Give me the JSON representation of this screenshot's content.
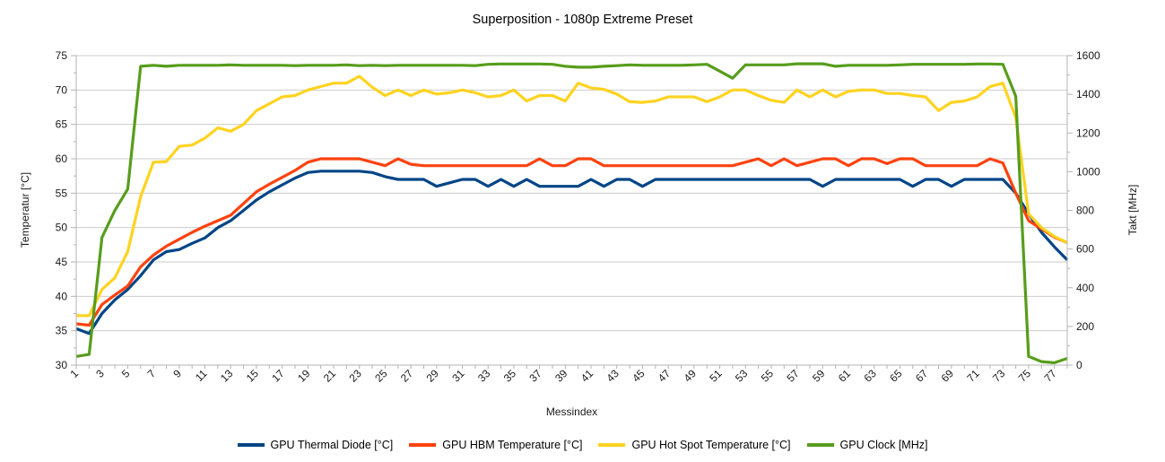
{
  "title": "Superposition - 1080p Extreme Preset",
  "colors": {
    "background": "#ffffff",
    "grid": "#cccccc",
    "axis": "#b3b3b3",
    "text": "#000000",
    "series_blue": "#004586",
    "series_red": "#ff420e",
    "series_yellow": "#ffd320",
    "series_green": "#579d1c"
  },
  "chart_data": {
    "type": "line",
    "title": "Superposition - 1080p Extreme Preset",
    "xlabel": "Messindex",
    "x_label_every": 2,
    "legend_position": "bottom",
    "grid": "horizontal-major",
    "y_left": {
      "title": "Temperatur [°C]",
      "min": 30,
      "max": 75,
      "major_step": 5,
      "minor_step": 2.5
    },
    "y_right": {
      "title": "Takt [MHz]",
      "min": 0,
      "max": 1600,
      "major_step": 200,
      "minor_step": 100
    },
    "x": [
      1,
      2,
      3,
      4,
      5,
      6,
      7,
      8,
      9,
      10,
      11,
      12,
      13,
      14,
      15,
      16,
      17,
      18,
      19,
      20,
      21,
      22,
      23,
      24,
      25,
      26,
      27,
      28,
      29,
      30,
      31,
      32,
      33,
      34,
      35,
      36,
      37,
      38,
      39,
      40,
      41,
      42,
      43,
      44,
      45,
      46,
      47,
      48,
      49,
      50,
      51,
      52,
      53,
      54,
      55,
      56,
      57,
      58,
      59,
      60,
      61,
      62,
      63,
      64,
      65,
      66,
      67,
      68,
      69,
      70,
      71,
      72,
      73,
      74,
      75,
      76,
      77,
      78
    ],
    "series": [
      {
        "name": "GPU Thermal Diode [°C]",
        "color": "#004586",
        "axis": "left",
        "values": [
          35.3,
          34.6,
          37.5,
          39.5,
          41,
          43,
          45.3,
          46.5,
          46.8,
          47.7,
          48.5,
          50,
          51,
          52.5,
          54,
          55.2,
          56.2,
          57.2,
          58,
          58.2,
          58.2,
          58.2,
          58.2,
          58,
          57.4,
          57,
          57,
          57,
          56,
          56.5,
          57,
          57,
          56,
          57,
          56,
          57,
          56,
          56,
          56,
          56,
          57,
          56,
          57,
          57,
          56,
          57,
          57,
          57,
          57,
          57,
          57,
          57,
          57,
          57,
          57,
          57,
          57,
          57,
          56,
          57,
          57,
          57,
          57,
          57,
          57,
          56,
          57,
          57,
          56,
          57,
          57,
          57,
          57,
          55,
          52,
          49.3,
          47.2,
          45.3
        ]
      },
      {
        "name": "GPU HBM Temperature [°C]",
        "color": "#ff420e",
        "axis": "left",
        "values": [
          36,
          35.8,
          38.8,
          40.2,
          41.5,
          44.3,
          46,
          47.3,
          48.3,
          49.3,
          50.2,
          51,
          51.8,
          53.5,
          55.2,
          56.3,
          57.3,
          58.3,
          59.5,
          60,
          60,
          60,
          60,
          59.5,
          59,
          60,
          59.2,
          59,
          59,
          59,
          59,
          59,
          59,
          59,
          59,
          59,
          60,
          59,
          59,
          60,
          60,
          59,
          59,
          59,
          59,
          59,
          59,
          59,
          59,
          59,
          59,
          59,
          59.5,
          60,
          59,
          60,
          59,
          59.5,
          60,
          60,
          59,
          60,
          60,
          59.3,
          60,
          60,
          59,
          59,
          59,
          59,
          59,
          60,
          59.4,
          55,
          51,
          49.8,
          48.6,
          47.8
        ]
      },
      {
        "name": "GPU Hot Spot Temperature [°C]",
        "color": "#ffd320",
        "axis": "left",
        "values": [
          37.2,
          37.2,
          41,
          42.7,
          46.5,
          54.5,
          59.5,
          59.6,
          61.8,
          62,
          63,
          64.5,
          64,
          65,
          67,
          68,
          69,
          69.2,
          70,
          70.5,
          71,
          71,
          72,
          70.4,
          69.2,
          70,
          69.2,
          70,
          69.4,
          69.6,
          70,
          69.6,
          69,
          69.2,
          70,
          68.4,
          69.2,
          69.2,
          68.4,
          71,
          70.3,
          70.1,
          69.4,
          68.3,
          68.2,
          68.4,
          69,
          69,
          69,
          68.3,
          69,
          70,
          70,
          69.2,
          68.5,
          68.2,
          70,
          69,
          70,
          69,
          69.8,
          70,
          70,
          69.5,
          69.5,
          69.2,
          69,
          67,
          68.2,
          68.4,
          69,
          70.5,
          71,
          66,
          52,
          50,
          48.7,
          47.8
        ]
      },
      {
        "name": "GPU Clock [MHz]",
        "color": "#579d1c",
        "axis": "right",
        "values": [
          45,
          55,
          660,
          800,
          910,
          1545,
          1550,
          1545,
          1550,
          1550,
          1550,
          1550,
          1552,
          1550,
          1550,
          1550,
          1550,
          1548,
          1550,
          1550,
          1550,
          1552,
          1548,
          1550,
          1548,
          1550,
          1550,
          1550,
          1550,
          1550,
          1550,
          1548,
          1555,
          1557,
          1557,
          1557,
          1557,
          1555,
          1545,
          1540,
          1540,
          1545,
          1548,
          1552,
          1550,
          1550,
          1550,
          1550,
          1552,
          1555,
          1520,
          1483,
          1552,
          1552,
          1552,
          1552,
          1558,
          1558,
          1558,
          1545,
          1550,
          1550,
          1550,
          1550,
          1552,
          1555,
          1555,
          1555,
          1555,
          1555,
          1557,
          1557,
          1555,
          1390,
          45,
          18,
          12,
          35
        ]
      }
    ]
  }
}
